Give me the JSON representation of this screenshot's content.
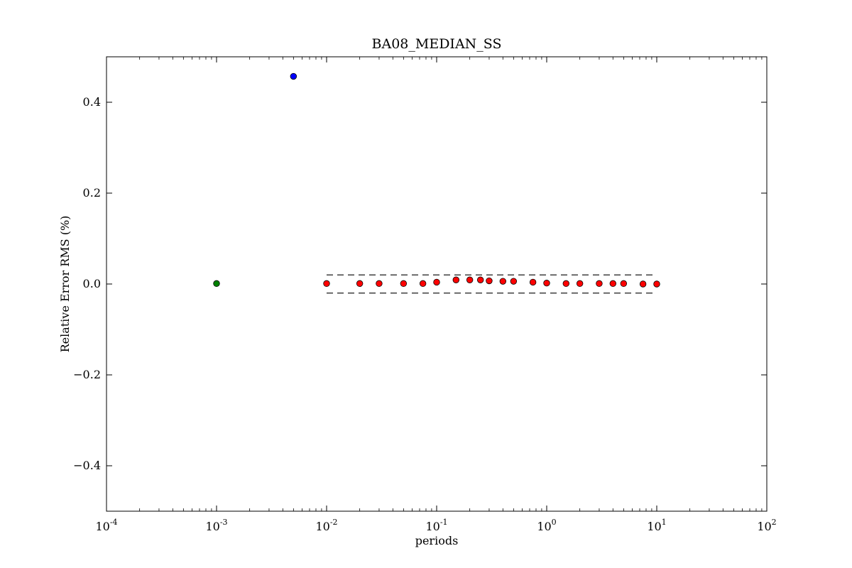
{
  "chart_data": {
    "type": "scatter",
    "title": "BA08_MEDIAN_SS",
    "xlabel": "periods",
    "ylabel": "Relative Error RMS (%)",
    "x_scale": "log",
    "xlim": [
      0.0001,
      100
    ],
    "ylim": [
      -0.5,
      0.5
    ],
    "x_ticks": [
      {
        "base": "10",
        "exp": "-4",
        "value": 0.0001
      },
      {
        "base": "10",
        "exp": "-3",
        "value": 0.001
      },
      {
        "base": "10",
        "exp": "-2",
        "value": 0.01
      },
      {
        "base": "10",
        "exp": "-1",
        "value": 0.1
      },
      {
        "base": "10",
        "exp": "0",
        "value": 1
      },
      {
        "base": "10",
        "exp": "1",
        "value": 10
      },
      {
        "base": "10",
        "exp": "2",
        "value": 100
      }
    ],
    "y_ticks": [
      {
        "label": "0.4",
        "value": 0.4
      },
      {
        "label": "0.2",
        "value": 0.2
      },
      {
        "label": "0.0",
        "value": 0.0
      },
      {
        "label": "−0.2",
        "value": -0.2
      },
      {
        "label": "−0.4",
        "value": -0.4
      }
    ],
    "grid": false,
    "series": [
      {
        "color": "#0000ff",
        "points": [
          [
            0.005,
            0.457
          ]
        ]
      },
      {
        "color": "#008000",
        "points": [
          [
            0.001,
            0.001
          ]
        ]
      },
      {
        "color": "#ff0000",
        "points": [
          [
            0.01,
            0.001
          ],
          [
            0.02,
            0.001
          ],
          [
            0.03,
            0.001
          ],
          [
            0.05,
            0.001
          ],
          [
            0.075,
            0.001
          ],
          [
            0.1,
            0.004
          ],
          [
            0.15,
            0.009
          ],
          [
            0.2,
            0.009
          ],
          [
            0.25,
            0.009
          ],
          [
            0.3,
            0.007
          ],
          [
            0.4,
            0.006
          ],
          [
            0.5,
            0.006
          ],
          [
            0.75,
            0.004
          ],
          [
            1.0,
            0.002
          ],
          [
            1.5,
            0.001
          ],
          [
            2.0,
            0.001
          ],
          [
            3.0,
            0.001
          ],
          [
            4.0,
            0.001
          ],
          [
            5.0,
            0.001
          ],
          [
            7.5,
            0.0
          ],
          [
            10.0,
            0.0
          ]
        ]
      }
    ],
    "reference_lines": [
      {
        "y": 0.02,
        "x_range": [
          0.01,
          9.5
        ],
        "style": "dashed",
        "color": "#000000"
      },
      {
        "y": -0.02,
        "x_range": [
          0.01,
          9.5
        ],
        "style": "dashed",
        "color": "#000000"
      }
    ]
  }
}
